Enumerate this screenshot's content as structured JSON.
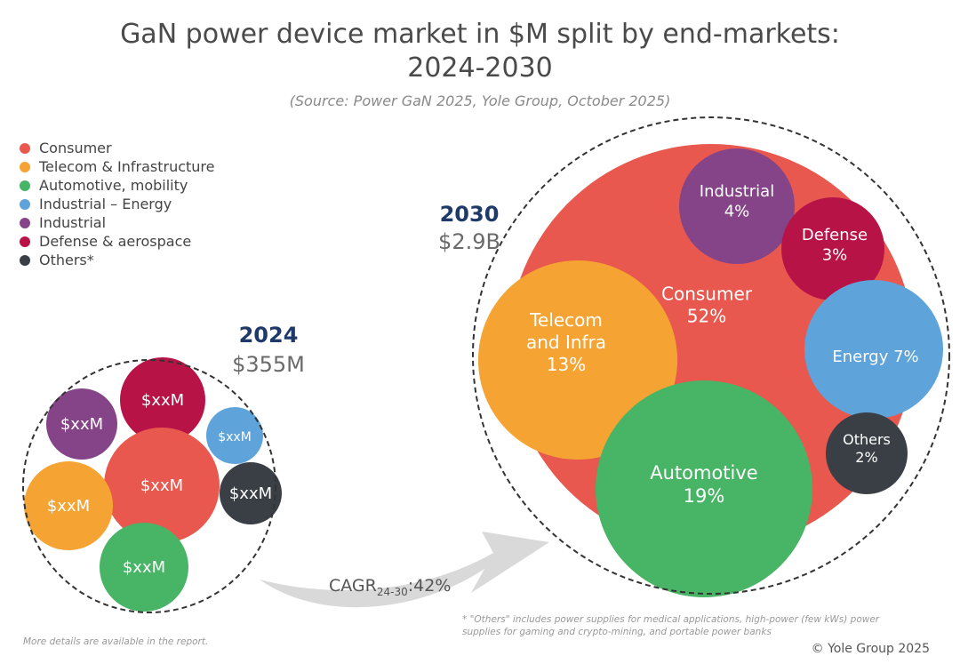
{
  "title_line1": "GaN power device market in $M split by end-markets:",
  "title_line2": "2024-2030",
  "source": "(Source: Power GaN 2025, Yole Group, October 2025)",
  "legend": [
    {
      "label": "Consumer",
      "color": "#e8584f"
    },
    {
      "label": "Telecom & Infrastructure",
      "color": "#f5a433"
    },
    {
      "label": "Automotive, mobility",
      "color": "#48b465"
    },
    {
      "label": "Industrial – Energy",
      "color": "#5ea3d9"
    },
    {
      "label": "Industrial",
      "color": "#864488"
    },
    {
      "label": "Defense & aerospace",
      "color": "#b81347"
    },
    {
      "label": "Others*",
      "color": "#3a3f45"
    }
  ],
  "chart_data": [
    {
      "type": "bubble",
      "year": "2024",
      "total": "$355M",
      "bubbles": [
        {
          "segment": "Industrial",
          "label": "$xxM",
          "color": "#864488"
        },
        {
          "segment": "Defense & aerospace",
          "label": "$xxM",
          "color": "#b81347"
        },
        {
          "segment": "Industrial – Energy",
          "label": "$xxM",
          "color": "#5ea3d9"
        },
        {
          "segment": "Consumer",
          "label": "$xxM",
          "color": "#e8584f"
        },
        {
          "segment": "Telecom & Infrastructure",
          "label": "$xxM",
          "color": "#f5a433"
        },
        {
          "segment": "Others*",
          "label": "$xxM",
          "color": "#3a3f45"
        },
        {
          "segment": "Automotive, mobility",
          "label": "$xxM",
          "color": "#48b465"
        }
      ]
    },
    {
      "type": "bubble",
      "year": "2030",
      "total": "$2.9B",
      "bubbles": [
        {
          "segment": "Consumer",
          "lines": [
            "Consumer",
            "52%"
          ],
          "share": 52,
          "color": "#e8584f"
        },
        {
          "segment": "Industrial",
          "lines": [
            "Industrial",
            "4%"
          ],
          "share": 4,
          "color": "#864488"
        },
        {
          "segment": "Defense & aerospace",
          "lines": [
            "Defense",
            "3%"
          ],
          "share": 3,
          "color": "#b81347"
        },
        {
          "segment": "Telecom & Infrastructure",
          "lines": [
            "Telecom",
            "and Infra",
            "13%"
          ],
          "share": 13,
          "color": "#f5a433"
        },
        {
          "segment": "Industrial – Energy",
          "lines": [
            "Energy 7%"
          ],
          "share": 7,
          "color": "#5ea3d9"
        },
        {
          "segment": "Others*",
          "lines": [
            "Others",
            "2%"
          ],
          "share": 2,
          "color": "#3a3f45"
        },
        {
          "segment": "Automotive, mobility",
          "lines": [
            "Automotive",
            "19%"
          ],
          "share": 19,
          "color": "#48b465"
        }
      ]
    }
  ],
  "cagr": {
    "prefix": "CAGR",
    "sub": "24-30",
    "value": ":42%"
  },
  "footnote": "* \"Others\" includes power supplies for medical applications, high-power (few kWs) power supplies for gaming and crypto-mining, and portable power banks",
  "more_details": "More details are available in the report.",
  "copyright": "© Yole Group 2025"
}
